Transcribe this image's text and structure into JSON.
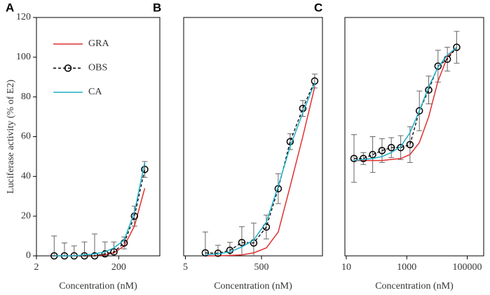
{
  "chart_data": [
    {
      "type": "line",
      "title": "A",
      "xlabel": "Concentration (nM)",
      "ylabel": "Luciferase activity (% of E2)",
      "xscale": "log",
      "xlim": [
        2,
        2000
      ],
      "xticks": [
        2,
        200
      ],
      "ylim": [
        0,
        120
      ],
      "yticks": [
        0,
        20,
        40,
        60,
        80,
        100,
        120
      ],
      "legend": "upper-left",
      "x": [
        5.4,
        9.6,
        16.5,
        29.4,
        52,
        93,
        153,
        272,
        483,
        859
      ],
      "series": [
        {
          "name": "GRA",
          "color": "#e03030",
          "linestyle": "solid",
          "values": [
            0,
            0,
            0,
            0,
            0,
            0.5,
            1.5,
            5,
            15,
            34
          ]
        },
        {
          "name": "OBS",
          "color": "#000000",
          "linestyle": "dashed",
          "marker": "circle",
          "values": [
            0,
            0,
            0,
            0,
            0,
            1,
            2,
            6.5,
            20,
            43.5
          ],
          "errors": [
            10,
            6.5,
            5,
            7,
            11,
            6,
            5,
            3,
            5,
            4
          ]
        },
        {
          "name": "CA",
          "color": "#1fb0c8",
          "linestyle": "solid",
          "values": [
            0,
            0,
            0,
            0.5,
            1,
            2,
            4,
            8,
            22,
            47
          ]
        }
      ]
    },
    {
      "type": "line",
      "title": "B",
      "xlabel": "Concentration (nM)",
      "xscale": "log",
      "xlim": [
        4.5,
        20000
      ],
      "xticks": [
        5,
        500
      ],
      "ylim": [
        0,
        120
      ],
      "x": [
        16.7,
        35.9,
        73.9,
        152,
        312,
        670,
        1375,
        2830,
        6080,
        12500
      ],
      "series": [
        {
          "name": "GRA",
          "color": "#e03030",
          "linestyle": "solid",
          "values": [
            0,
            0,
            0.2,
            0.5,
            1.5,
            4,
            12,
            35,
            60,
            85
          ]
        },
        {
          "name": "OBS",
          "color": "#000000",
          "linestyle": "dashed",
          "marker": "circle",
          "values": [
            1.5,
            1.3,
            2.8,
            6.7,
            6.5,
            14.5,
            33.8,
            57.5,
            74.2,
            88
          ],
          "errors": [
            10.5,
            4,
            4,
            8,
            10,
            6,
            7.5,
            4,
            4,
            3.5
          ]
        },
        {
          "name": "CA",
          "color": "#1fb0c8",
          "linestyle": "solid",
          "values": [
            0.5,
            1,
            2,
            4.5,
            8,
            17,
            35,
            55,
            72,
            87
          ]
        }
      ]
    },
    {
      "type": "line",
      "title": "C",
      "xlabel": "Concentration (nM)",
      "xscale": "log",
      "xlim": [
        9,
        350000
      ],
      "xticks": [
        10,
        1000,
        100000
      ],
      "ylim": [
        0,
        120
      ],
      "x": [
        18,
        36.7,
        74.6,
        152,
        308,
        630,
        1280,
        2610,
        5310,
        10800,
        22000,
        44800
      ],
      "series": [
        {
          "name": "GRA",
          "color": "#e03030",
          "linestyle": "solid",
          "values": [
            48,
            48,
            48,
            48,
            48.5,
            49,
            51,
            57,
            70,
            88,
            100,
            105
          ]
        },
        {
          "name": "OBS",
          "color": "#000000",
          "linestyle": "dashed",
          "marker": "circle",
          "values": [
            49,
            49,
            51,
            53,
            54.5,
            54.5,
            56,
            73,
            83.5,
            95.5,
            99,
            105
          ],
          "errors": [
            12,
            3,
            9,
            6,
            5,
            6,
            9,
            10,
            7,
            8,
            6,
            8
          ]
        },
        {
          "name": "CA",
          "color": "#1fb0c8",
          "linestyle": "solid",
          "values": [
            48,
            48.5,
            49,
            50,
            52,
            55,
            62,
            73,
            85,
            95,
            101,
            105
          ]
        }
      ]
    }
  ]
}
